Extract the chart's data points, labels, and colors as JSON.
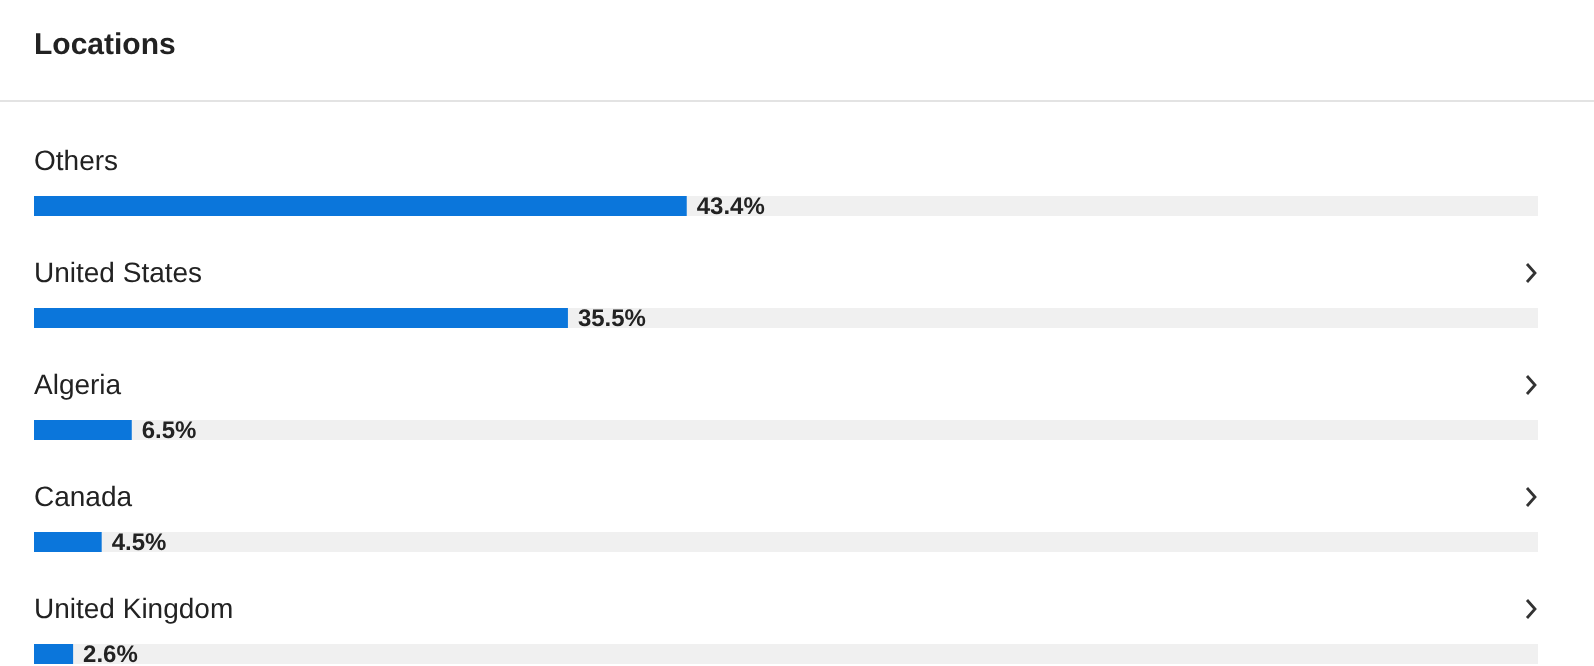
{
  "chart_data": {
    "type": "bar",
    "orientation": "horizontal",
    "title": "Locations",
    "categories": [
      "Others",
      "United States",
      "Algeria",
      "Canada",
      "United Kingdom"
    ],
    "values": [
      43.4,
      35.5,
      6.5,
      4.5,
      2.6
    ],
    "value_labels": [
      "43.4%",
      "35.5%",
      "6.5%",
      "4.5%",
      "2.6%"
    ],
    "color": "#0b76db",
    "xlim": [
      0,
      100
    ]
  }
}
